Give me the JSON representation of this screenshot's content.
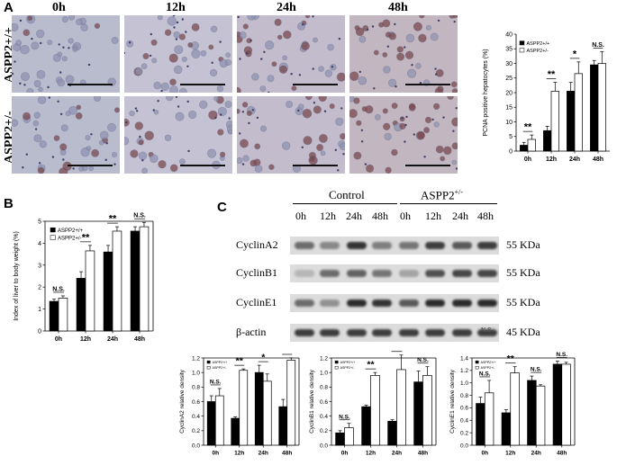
{
  "panel_a": {
    "letter": "A",
    "timepoints": [
      "0h",
      "12h",
      "24h",
      "48h"
    ],
    "rows": [
      "ASPP2+/+",
      "ASPP2+/-"
    ]
  },
  "panel_b": {
    "letter": "B"
  },
  "panel_c": {
    "letter": "C",
    "group_control": "Control",
    "group_aspp2": "ASPP2",
    "group_aspp2_sup": "+/-",
    "lanes": [
      "0h",
      "12h",
      "24h",
      "48h",
      "0h",
      "12h",
      "24h",
      "48h"
    ],
    "blots": [
      {
        "name": "CyclinA2",
        "kda": "55 KDa"
      },
      {
        "name": "CyclinB1",
        "kda": "55 KDa"
      },
      {
        "name": "CyclinE1",
        "kda": "55 KDa"
      },
      {
        "name": "β-actin",
        "kda": "45 KDa"
      }
    ],
    "blot_overlay_text": "N.S."
  },
  "colors": {
    "series1": "#000000",
    "series2": "#ffffff",
    "stain_bg": "#b9bccd",
    "nuclei": "#7a4a50"
  },
  "chart_data": [
    {
      "id": "pcna",
      "type": "bar",
      "ylabel": "PCNA positive hepatocytes (%)",
      "categories": [
        "0h",
        "12h",
        "24h",
        "48h"
      ],
      "series": [
        {
          "name": "ASPP2+/+",
          "values": [
            2,
            7,
            20.5,
            29.5
          ],
          "errors": [
            1,
            1.5,
            3,
            1.5
          ]
        },
        {
          "name": "ASPP2+/-",
          "values": [
            4,
            20.5,
            26.5,
            30
          ],
          "errors": [
            1.5,
            3,
            4,
            4
          ]
        }
      ],
      "ylim": [
        0,
        40
      ],
      "yticks": [
        0,
        5,
        10,
        15,
        20,
        25,
        30,
        35,
        40
      ],
      "significance": [
        "**",
        "**",
        "*",
        "N.S."
      ],
      "legend": "top-left"
    },
    {
      "id": "liver-index",
      "type": "bar",
      "ylabel": "Index of liver to body weight (%)",
      "categories": [
        "0h",
        "12h",
        "24h",
        "48h"
      ],
      "series": [
        {
          "name": "ASPP2+/+",
          "values": [
            1.35,
            2.4,
            3.6,
            4.55
          ],
          "errors": [
            0.1,
            0.3,
            0.3,
            0.2
          ]
        },
        {
          "name": "ASPP2+/-",
          "values": [
            1.5,
            3.65,
            4.55,
            4.75
          ],
          "errors": [
            0.1,
            0.25,
            0.2,
            0.2
          ]
        }
      ],
      "ylim": [
        0,
        5
      ],
      "yticks": [
        0,
        1,
        2,
        3,
        4,
        5
      ],
      "significance": [
        "N.S.",
        "**",
        "**",
        "N.S."
      ],
      "legend": "top-left"
    },
    {
      "id": "cyclina2",
      "type": "bar",
      "ylabel": "CyclinA2 relative density",
      "categories": [
        "0h",
        "12h",
        "24h",
        "48h"
      ],
      "series": [
        {
          "name": "ASPP2+/+",
          "values": [
            0.6,
            0.37,
            1.0,
            0.53
          ],
          "errors": [
            0.08,
            0.02,
            0.1,
            0.1
          ]
        },
        {
          "name": "ASPP2+/-",
          "values": [
            0.68,
            1.03,
            0.88,
            1.17
          ],
          "errors": [
            0.1,
            0.02,
            0.1,
            0.03
          ]
        }
      ],
      "ylim": [
        0,
        1.2
      ],
      "yticks": [
        0,
        0.2,
        0.4,
        0.6,
        0.8,
        1.0,
        1.2
      ],
      "significance": [
        "N.S.",
        "**",
        "*",
        "**"
      ],
      "legend": "top-left"
    },
    {
      "id": "cyclinb1",
      "type": "bar",
      "ylabel": "CyclinB1 relative density",
      "categories": [
        "0h",
        "12h",
        "24h",
        "48h"
      ],
      "series": [
        {
          "name": "ASPP2+/+",
          "values": [
            0.17,
            0.53,
            0.33,
            0.87
          ],
          "errors": [
            0.03,
            0.02,
            0.02,
            0.15
          ]
        },
        {
          "name": "ASPP2+/-",
          "values": [
            0.24,
            0.96,
            1.04,
            0.96
          ],
          "errors": [
            0.06,
            0.04,
            0.2,
            0.12
          ]
        }
      ],
      "ylim": [
        0,
        1.2
      ],
      "yticks": [
        0,
        0.2,
        0.4,
        0.6,
        0.8,
        1.0,
        1.2
      ],
      "significance": [
        "N.S.",
        "**",
        "**",
        "N.S."
      ],
      "legend": "top-left"
    },
    {
      "id": "cycline1",
      "type": "bar",
      "ylabel": "CyclinE1 relative density",
      "categories": [
        "0h",
        "12h",
        "24h",
        "48h"
      ],
      "series": [
        {
          "name": "ASPP2+/+",
          "values": [
            0.67,
            0.52,
            1.04,
            1.3
          ],
          "errors": [
            0.1,
            0.05,
            0.07,
            0.05
          ]
        },
        {
          "name": "ASPP2+/-",
          "values": [
            0.84,
            1.16,
            0.95,
            1.3
          ],
          "errors": [
            0.2,
            0.1,
            0.02,
            0.03
          ]
        }
      ],
      "ylim": [
        0,
        1.4
      ],
      "yticks": [
        0,
        0.2,
        0.4,
        0.6,
        0.8,
        1.0,
        1.2,
        1.4
      ],
      "significance": [
        "N.S.",
        "**",
        "N.S.",
        "N.S."
      ],
      "legend": "top-left"
    }
  ]
}
